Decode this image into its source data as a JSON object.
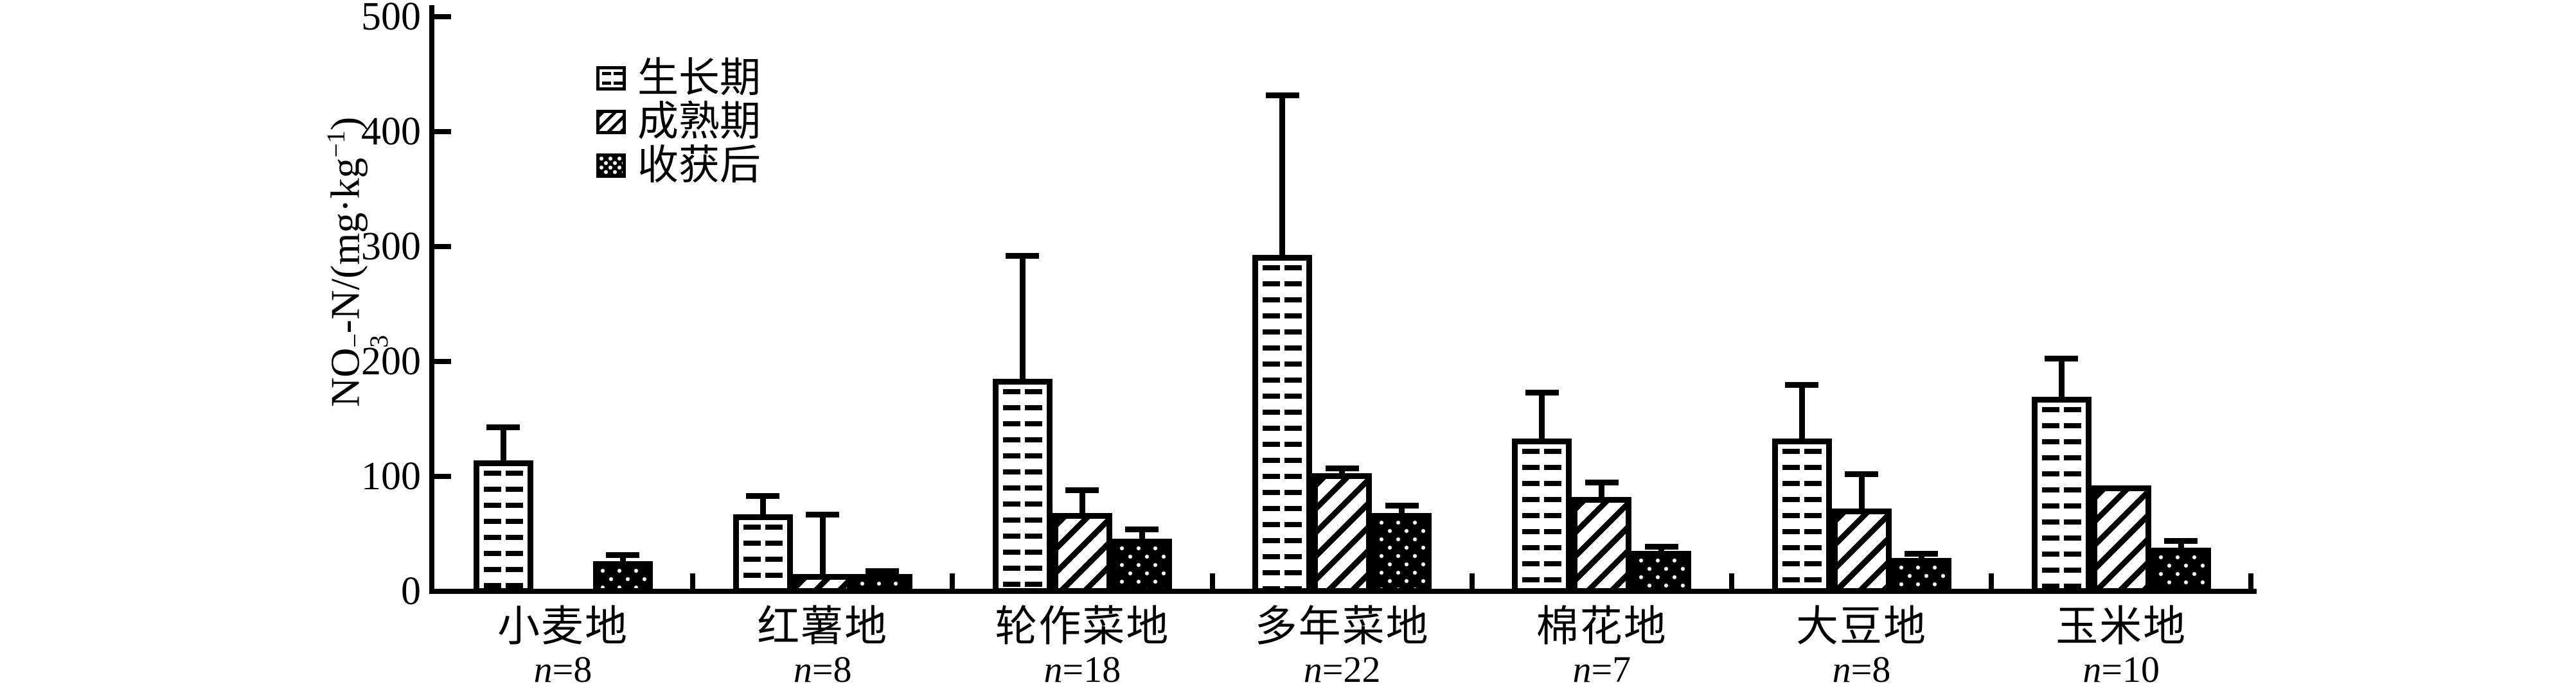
{
  "chart_data": {
    "type": "bar",
    "title": "",
    "ylabel_parts": {
      "prefix": "NO",
      "sup": "−",
      "sub": "3",
      "mid": "-N/(mg·kg",
      "sup2": "−1",
      "end": ")"
    },
    "ylabel_text": "NO3−-N/(mg·kg−1)",
    "ylim": [
      0,
      500
    ],
    "yticks": [
      0,
      100,
      200,
      300,
      400,
      500
    ],
    "grid": false,
    "legend_position": "upper-left-inside",
    "categories": [
      {
        "name": "小麦地",
        "n_label": "n=8"
      },
      {
        "name": "红薯地",
        "n_label": "n=8"
      },
      {
        "name": "轮作菜地",
        "n_label": "n=18"
      },
      {
        "name": "多年菜地",
        "n_label": "n=22"
      },
      {
        "name": "棉花地",
        "n_label": "n=7"
      },
      {
        "name": "大豆地",
        "n_label": "n=8"
      },
      {
        "name": "玉米地",
        "n_label": "n=10"
      }
    ],
    "series": [
      {
        "name": "生长期",
        "pattern": "dotted",
        "values": [
          114,
          67,
          185,
          293,
          133,
          133,
          169
        ],
        "errors": [
          29,
          16,
          107,
          139,
          40,
          47,
          34
        ]
      },
      {
        "name": "成熟期",
        "pattern": "hatch",
        "values": [
          null,
          15,
          68,
          103,
          82,
          72,
          92
        ],
        "errors": [
          null,
          52,
          20,
          4,
          13,
          30,
          null
        ]
      },
      {
        "name": "收获后",
        "pattern": "black-dots",
        "values": [
          26,
          15,
          46,
          68,
          35,
          29,
          38
        ],
        "errors": [
          6,
          3,
          8,
          7,
          4,
          4,
          6
        ]
      }
    ],
    "colors": {
      "ink": "#000000",
      "background": "#ffffff"
    }
  }
}
